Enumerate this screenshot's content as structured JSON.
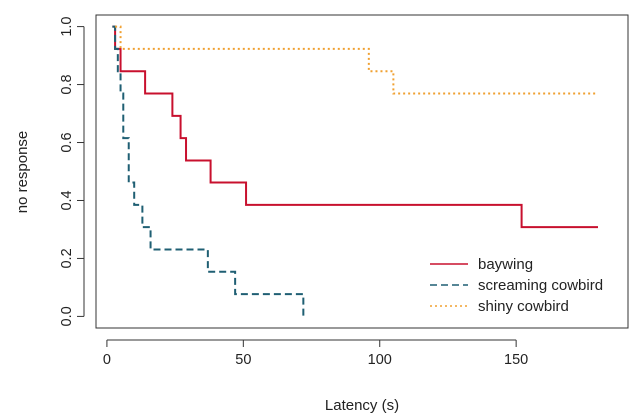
{
  "chart_data": {
    "type": "line",
    "step": true,
    "xlabel": "Latency (s)",
    "ylabel": "no response",
    "xlim": [
      -4,
      191
    ],
    "ylim": [
      -0.04,
      1.04
    ],
    "xticks": [
      0,
      50,
      100,
      150
    ],
    "yticks": [
      0.0,
      0.2,
      0.4,
      0.6,
      0.8,
      1.0
    ],
    "xtick_labels": [
      "0",
      "50",
      "100",
      "150"
    ],
    "ytick_labels": [
      "0.0",
      "0.2",
      "0.4",
      "0.6",
      "0.8",
      "1.0"
    ],
    "grid": false,
    "legend_position": "bottom-right",
    "series": [
      {
        "name": "baywing",
        "color": "#c8102e",
        "dash": "solid",
        "x": [
          2,
          3,
          5,
          14,
          24,
          27,
          29,
          38,
          51,
          152,
          180
        ],
        "y": [
          1.0,
          0.923,
          0.846,
          0.769,
          0.692,
          0.615,
          0.538,
          0.462,
          0.385,
          0.308,
          0.308
        ]
      },
      {
        "name": "screaming cowbird",
        "color": "#1f5f73",
        "dash": "dashed",
        "x": [
          2,
          3,
          4,
          5,
          6,
          8,
          10,
          13,
          16,
          37,
          47,
          72
        ],
        "y": [
          1.0,
          0.923,
          0.846,
          0.769,
          0.615,
          0.462,
          0.385,
          0.308,
          0.231,
          0.154,
          0.077,
          0.0
        ]
      },
      {
        "name": "shiny cowbird",
        "color": "#f0a030",
        "dash": "dotted",
        "x": [
          3,
          5,
          96,
          105,
          180
        ],
        "y": [
          1.0,
          0.923,
          0.846,
          0.769,
          0.769
        ]
      }
    ]
  }
}
